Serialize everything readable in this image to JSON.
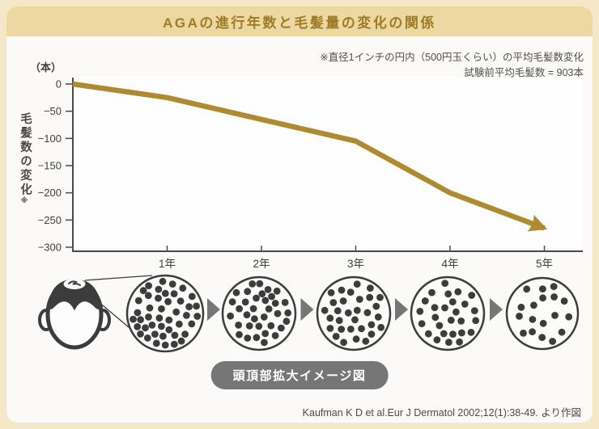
{
  "title": "AGAの進行年数と毛髪量の変化の関係",
  "note": {
    "line1": "※直径1インチの円内（500円玉くらい）の平均毛髪数変化",
    "line2": "試験前平均毛髪数 = 903本"
  },
  "chart_data": {
    "type": "line",
    "title": "AGAの進行年数と毛髪量の変化の関係",
    "x": [
      0,
      1,
      2,
      3,
      4,
      5
    ],
    "x_tick_labels": [
      "1年",
      "2年",
      "3年",
      "4年",
      "5年"
    ],
    "values": [
      0,
      -25,
      -65,
      -105,
      -200,
      -265
    ],
    "unit_label": "（本）",
    "ylabel": "毛髪数の変化",
    "ylabel_note_mark": "※",
    "yticks": [
      0,
      -50,
      -100,
      -150,
      -200,
      -250,
      -300
    ],
    "ylim": [
      -300,
      0
    ],
    "xlim_years": [
      0,
      5
    ],
    "grid": false,
    "legend": "none",
    "line_color": "#b08a31",
    "line_ends_with_arrow": true
  },
  "magnify": {
    "label": "頭頂部拡大イメージ図",
    "dot_counts": [
      44,
      35,
      31,
      27,
      18
    ]
  },
  "citation": "Kaufman K D et al.Eur J Dermatol 2002;12(1):38-49. より作図",
  "colors": {
    "frame_bg": "#f4e8c9",
    "header_bg": "#edd8a2",
    "title_text": "#9d7b28",
    "card_bg": "#fbfaf8",
    "axis_ink": "#4a4a4a",
    "tick_text": "#3f3f3f",
    "note_text": "#4f4f4f",
    "line_gold": "#b08a31",
    "illustration_ink": "#3c3c3c",
    "badge_gray": "#767676"
  }
}
